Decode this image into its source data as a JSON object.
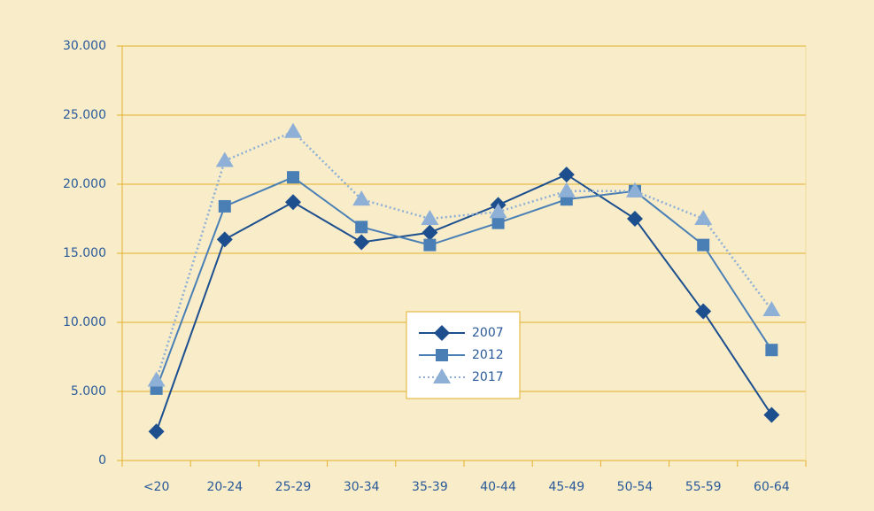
{
  "chart_data": {
    "type": "line",
    "categories": [
      "<20",
      "20-24",
      "25-29",
      "30-34",
      "35-39",
      "40-44",
      "45-49",
      "50-54",
      "55-59",
      "60-64"
    ],
    "series": [
      {
        "name": "2007",
        "color": "#1d4f8f",
        "marker": "diamond",
        "line_style": "solid",
        "values": [
          2100,
          16000,
          18700,
          15800,
          16500,
          18500,
          20700,
          17500,
          10800,
          3300
        ]
      },
      {
        "name": "2012",
        "color": "#4a7fb5",
        "marker": "square",
        "line_style": "solid",
        "values": [
          5200,
          18400,
          20500,
          16900,
          15600,
          17200,
          18900,
          19500,
          15600,
          8000
        ]
      },
      {
        "name": "2017",
        "color": "#8fb0d6",
        "marker": "triangle",
        "line_style": "dotted",
        "values": [
          5800,
          21700,
          23800,
          18900,
          17500,
          18000,
          19500,
          19500,
          17500,
          10900
        ]
      }
    ],
    "ylim": [
      0,
      30000
    ],
    "yticks": [
      0,
      {
        "value": 5000,
        "label": "5.000"
      },
      {
        "value": 10000,
        "label": "10.000"
      },
      {
        "value": 15000,
        "label": "15.000"
      },
      {
        "value": 20000,
        "label": "20.000"
      },
      {
        "value": 25000,
        "label": "25.000"
      },
      {
        "value": 30000,
        "label": "30.000"
      }
    ],
    "grid": true,
    "legend": "center"
  }
}
